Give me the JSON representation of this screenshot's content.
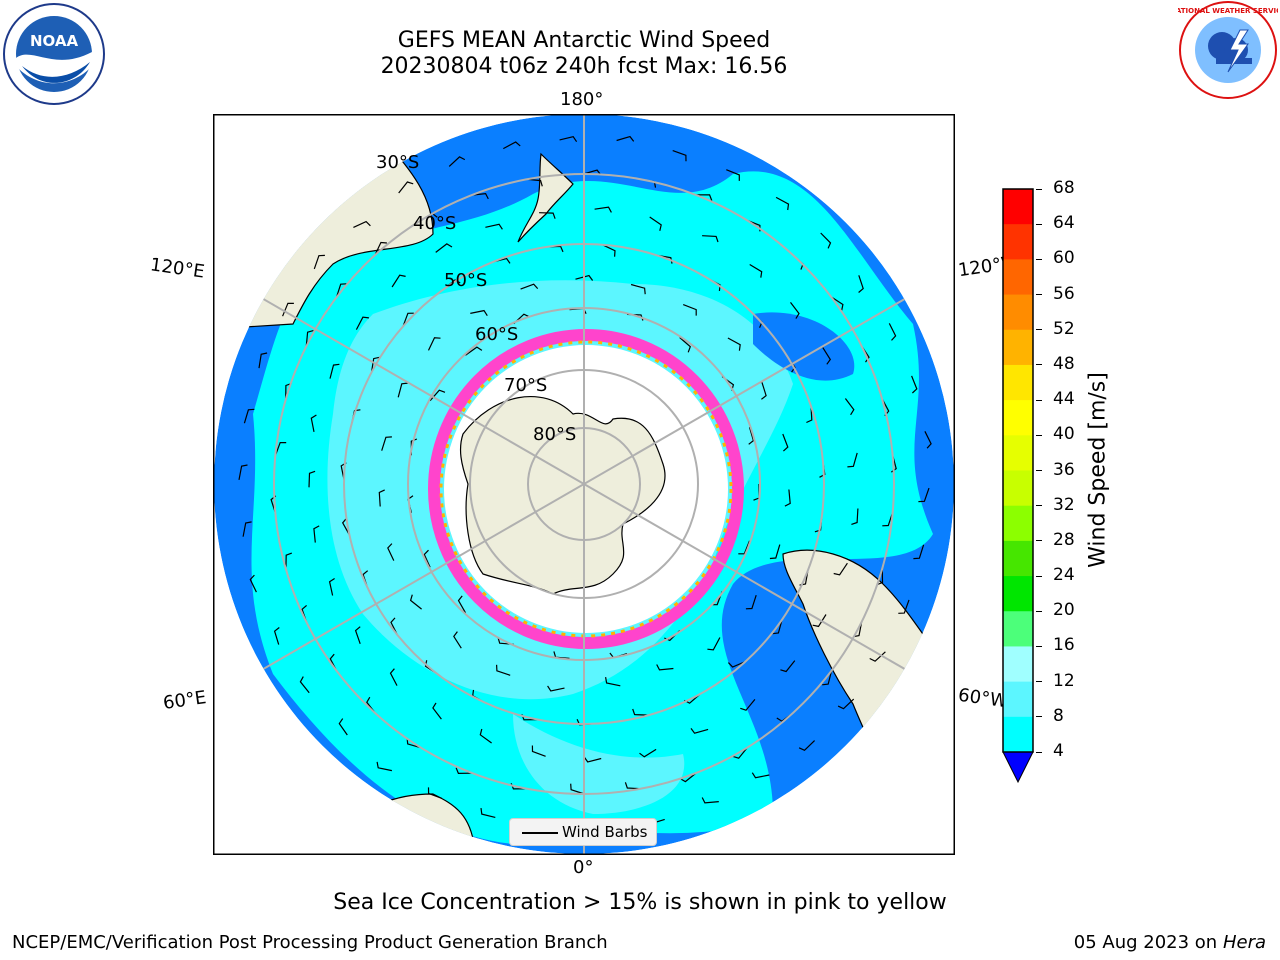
{
  "title": {
    "line1": "GEFS MEAN Antarctic Wind Speed",
    "line2": "20230804 t06z 240h fcst   Max: 16.56"
  },
  "map": {
    "projection": "south-polar-stereographic",
    "longitude_labels": {
      "top": "180°",
      "left_top": "120°E",
      "right_top": "120°W",
      "left_bottom": "60°E",
      "right_bottom": "60°W",
      "bottom": "0°"
    },
    "latitude_labels": [
      "30°S",
      "40°S",
      "50°S",
      "60°S",
      "70°S",
      "80°S"
    ],
    "colors": {
      "land": "#eeeedc",
      "ice_sheet": "#ffffff",
      "low_wind": "#0a7fff",
      "mid_wind": "#00ffff",
      "high_wind": "#5cf6ff",
      "sea_ice": "#ff44cc",
      "grid": "#b0b0b0"
    }
  },
  "legend": {
    "label": "Wind Barbs"
  },
  "colorbar": {
    "label": "Wind Speed [m/s]",
    "ticks": [
      "68",
      "64",
      "60",
      "56",
      "52",
      "48",
      "44",
      "40",
      "36",
      "32",
      "28",
      "24",
      "20",
      "16",
      "12",
      "8",
      "4"
    ],
    "colors": [
      "#ff0000",
      "#ff3300",
      "#ff6600",
      "#ff8c00",
      "#ffb300",
      "#ffe600",
      "#ffff00",
      "#e6ff00",
      "#c8ff00",
      "#8cff00",
      "#46e600",
      "#00e600",
      "#4cff7a",
      "#a0ffff",
      "#5cf6ff",
      "#00ffff",
      "#0a7fff"
    ],
    "extend_color": "#0000ff"
  },
  "notes": {
    "sea_ice": "Sea Ice Concentration > 15% is shown in pink to yellow",
    "footer_left": "NCEP/EMC/Verification Post Processing Product Generation Branch",
    "footer_date": "05 Aug 2023 on",
    "footer_machine": "Hera"
  },
  "logos": {
    "left": "NOAA",
    "right": "NATIONAL WEATHER SERVICE"
  }
}
